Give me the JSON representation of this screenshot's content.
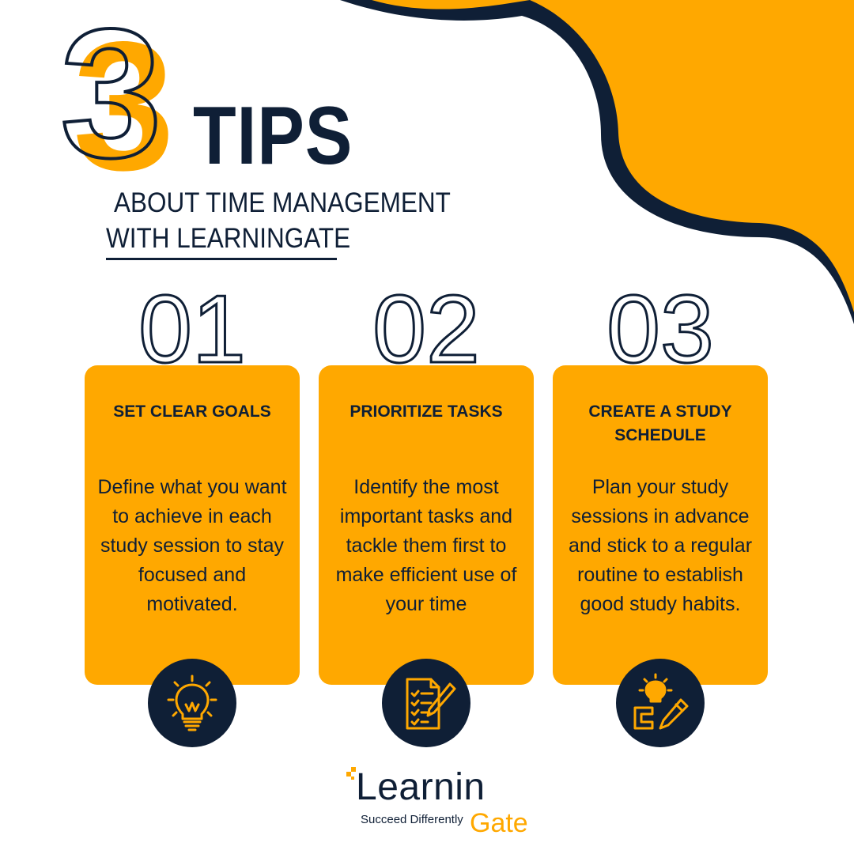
{
  "colors": {
    "accent": "#ffa800",
    "navy": "#0f1f36",
    "background": "#ffffff"
  },
  "header": {
    "big_number": "3",
    "title": "TIPS",
    "subtitle_line1": "ABOUT TIME MANAGEMENT",
    "subtitle_line2": "WITH LEARNINGATE"
  },
  "tips": [
    {
      "number": "01",
      "title": "SET CLEAR GOALS",
      "body": "Define what you want to achieve in each study session to stay focused and motivated.",
      "icon": "lightbulb-icon"
    },
    {
      "number": "02",
      "title": "PRIORITIZE TASKS",
      "body": "Identify the most important tasks and tackle them first to make efficient use of your time",
      "icon": "checklist-pencil-icon"
    },
    {
      "number": "03",
      "title": "CREATE A STUDY SCHEDULE",
      "body": "Plan your study sessions in advance and stick to a regular routine to establish good study habits.",
      "icon": "idea-pencil-icon"
    }
  ],
  "logo": {
    "wordmark": "Learnin",
    "wordmark_accent": "Gate",
    "tagline": "Succeed Differently"
  }
}
